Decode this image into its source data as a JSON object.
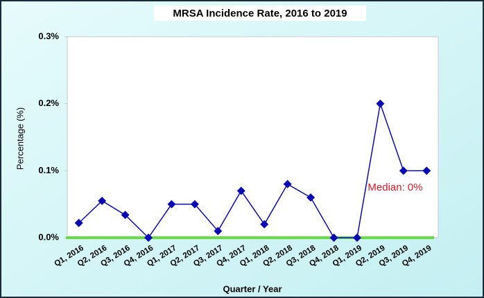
{
  "chart_data": {
    "type": "line",
    "title": "MRSA Incidence Rate, 2016 to 2019",
    "y_label": "Percentage (%)",
    "x_label": "Quarter / Year",
    "categories": [
      "Q1, 2016",
      "Q2, 2016",
      "Q3, 2016",
      "Q4, 2016",
      "Q1, 2017",
      "Q2, 2017",
      "Q3, 2017",
      "Q4, 2017",
      "Q1, 2018",
      "Q2, 2018",
      "Q3, 2018",
      "Q4, 2018",
      "Q1, 2019",
      "Q2, 2019",
      "Q3, 2019",
      "Q4, 2019"
    ],
    "values": [
      0.022,
      0.055,
      0.034,
      0,
      0.05,
      0.05,
      0.01,
      0.07,
      0.02,
      0.08,
      0.06,
      0,
      0,
      0.2,
      0.1,
      0.1
    ],
    "color": "#0a0ab4",
    "median": 0,
    "median_color": "#66dd44",
    "median_annotation": "Median: 0%",
    "ylim": [
      0,
      0.3
    ],
    "yticks": [
      {
        "value": 0,
        "label": "0.0%"
      },
      {
        "value": 0.1,
        "label": "0.1%"
      },
      {
        "value": 0.2,
        "label": "0.2%"
      },
      {
        "value": 0.3,
        "label": "0.3%"
      }
    ]
  }
}
